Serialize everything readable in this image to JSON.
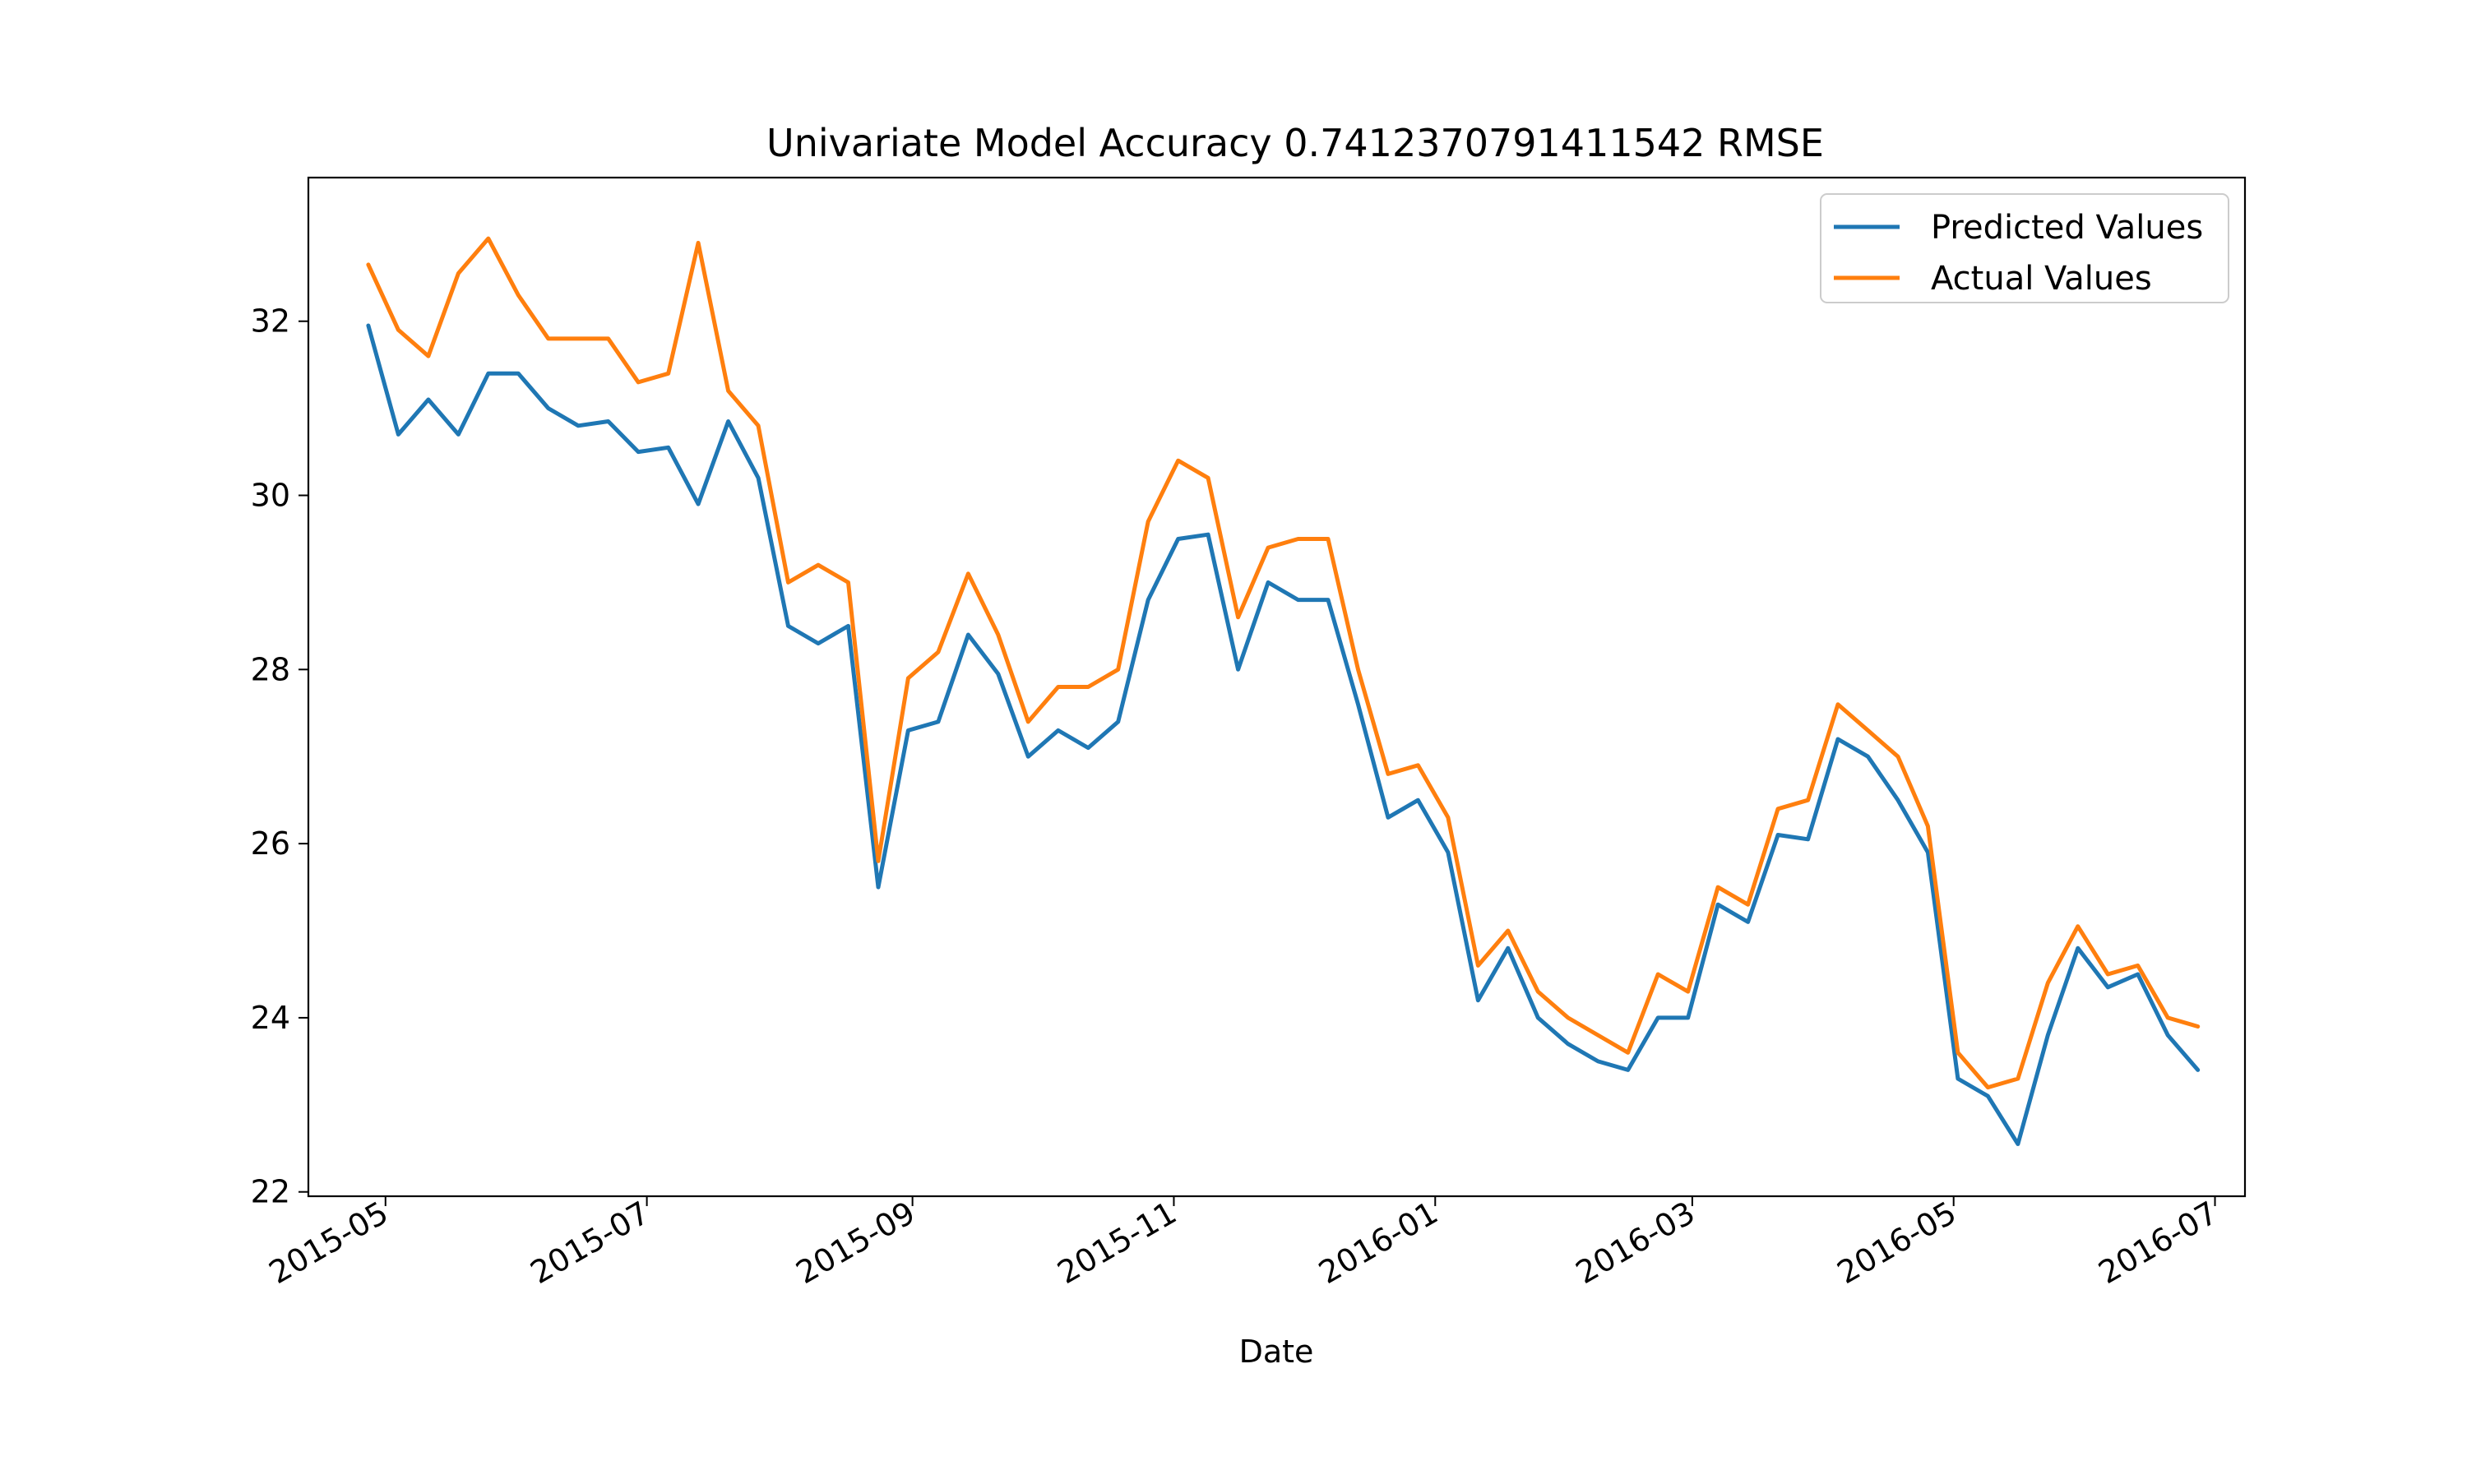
{
  "chart_data": {
    "type": "line",
    "title": "Univariate Model Accuracy 0.7412370791411542 RMSE",
    "xlabel": "Date",
    "ylabel": "",
    "xlim": [
      "2015-04-13",
      "2016-07-08"
    ],
    "ylim": [
      21.95,
      33.65
    ],
    "x_ticks": [
      "2015-05",
      "2015-07",
      "2015-09",
      "2015-11",
      "2016-01",
      "2016-03",
      "2016-05",
      "2016-07"
    ],
    "y_ticks": [
      22,
      24,
      26,
      28,
      30,
      32
    ],
    "grid": false,
    "legend_position": "top-right",
    "x": [
      "2015-04-27",
      "2015-05-04",
      "2015-05-11",
      "2015-05-18",
      "2015-05-25",
      "2015-06-01",
      "2015-06-08",
      "2015-06-15",
      "2015-06-22",
      "2015-06-29",
      "2015-07-06",
      "2015-07-13",
      "2015-07-20",
      "2015-07-27",
      "2015-08-03",
      "2015-08-10",
      "2015-08-17",
      "2015-08-24",
      "2015-08-31",
      "2015-09-07",
      "2015-09-14",
      "2015-09-21",
      "2015-09-28",
      "2015-10-05",
      "2015-10-12",
      "2015-10-19",
      "2015-10-26",
      "2015-11-02",
      "2015-11-09",
      "2015-11-16",
      "2015-11-23",
      "2015-11-30",
      "2015-12-07",
      "2015-12-14",
      "2015-12-21",
      "2015-12-28",
      "2016-01-04",
      "2016-01-11",
      "2016-01-18",
      "2016-01-25",
      "2016-02-01",
      "2016-02-08",
      "2016-02-15",
      "2016-02-22",
      "2016-02-29",
      "2016-03-07",
      "2016-03-14",
      "2016-03-21",
      "2016-03-28",
      "2016-04-04",
      "2016-04-11",
      "2016-04-18",
      "2016-04-25",
      "2016-05-02",
      "2016-05-09",
      "2016-05-16",
      "2016-05-23",
      "2016-05-30",
      "2016-06-06",
      "2016-06-13",
      "2016-06-20",
      "2016-06-27"
    ],
    "series": [
      {
        "name": "Predicted Values",
        "color": "#1f77b4",
        "values": [
          31.95,
          30.7,
          31.1,
          30.7,
          31.4,
          31.4,
          31.0,
          30.8,
          30.85,
          30.5,
          30.55,
          29.9,
          30.85,
          30.2,
          28.5,
          28.3,
          28.5,
          25.5,
          27.3,
          27.4,
          28.4,
          27.95,
          27.0,
          27.3,
          27.1,
          27.4,
          28.8,
          29.5,
          29.55,
          28.0,
          29.0,
          28.8,
          28.8,
          27.6,
          26.3,
          26.5,
          25.9,
          24.2,
          24.8,
          24.0,
          23.7,
          23.5,
          23.4,
          24.0,
          24.0,
          25.3,
          25.1,
          26.1,
          26.05,
          27.2,
          27.0,
          26.5,
          25.9,
          23.3,
          23.1,
          22.55,
          23.8,
          24.8,
          24.35,
          24.5,
          23.8,
          23.4
        ],
        "y_label_hint": ""
      },
      {
        "name": "Actual Values",
        "color": "#ff7f0e",
        "values": [
          32.65,
          31.9,
          31.6,
          32.55,
          32.95,
          32.3,
          31.8,
          31.8,
          31.8,
          31.3,
          31.4,
          32.9,
          31.2,
          30.8,
          29.0,
          29.2,
          29.0,
          25.8,
          27.9,
          28.2,
          29.1,
          28.4,
          27.4,
          27.8,
          27.8,
          28.0,
          29.7,
          30.4,
          30.2,
          28.6,
          29.4,
          29.5,
          29.5,
          28.0,
          26.8,
          26.9,
          26.3,
          24.6,
          25.0,
          24.3,
          24.0,
          23.8,
          23.6,
          24.5,
          24.3,
          25.5,
          25.3,
          26.4,
          26.5,
          27.6,
          27.3,
          27.0,
          26.2,
          23.6,
          23.2,
          23.3,
          24.4,
          25.05,
          24.5,
          24.6,
          24.0,
          23.9
        ]
      }
    ]
  }
}
